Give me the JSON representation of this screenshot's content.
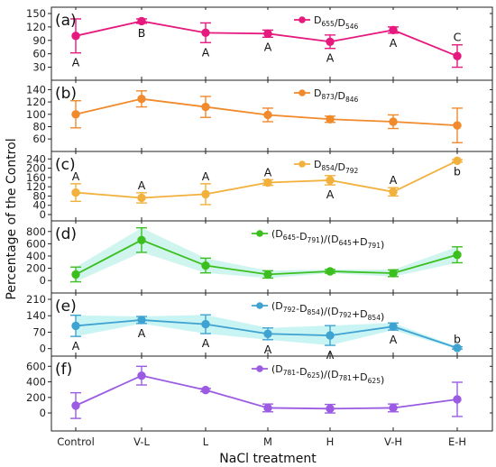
{
  "chart_data": {
    "type": "line",
    "xlabel": "NaCl treatment",
    "ylabel": "Percentage of the Control",
    "categories": [
      "Control",
      "V-L",
      "L",
      "M",
      "H",
      "V-H",
      "E-H"
    ],
    "panels": [
      {
        "label": "(a)",
        "color": "#e6197f",
        "legend": {
          "main": "D",
          "parts": [
            [
              "D",
              "655"
            ],
            [
              "/D",
              "546"
            ]
          ]
        },
        "ylim": [
          15,
          150
        ],
        "yticks": [
          30,
          60,
          90,
          120,
          150
        ],
        "values": [
          100,
          133,
          107,
          105,
          87,
          113,
          55
        ],
        "errors": [
          38,
          5,
          22,
          8,
          15,
          7,
          25
        ],
        "shade": false,
        "sig": [
          {
            "i": 0,
            "text": "A",
            "pos": "below"
          },
          {
            "i": 1,
            "text": "B",
            "pos": "below"
          },
          {
            "i": 2,
            "text": "A",
            "pos": "below"
          },
          {
            "i": 3,
            "text": "A",
            "pos": "below"
          },
          {
            "i": 4,
            "text": "A",
            "pos": "below"
          },
          {
            "i": 5,
            "text": "A",
            "pos": "below"
          },
          {
            "i": 6,
            "text": "C",
            "pos": "above"
          }
        ]
      },
      {
        "label": "(b)",
        "color": "#f08a2c",
        "legend": {
          "parts": [
            [
              "D",
              "873"
            ],
            [
              "/D",
              "846"
            ]
          ]
        },
        "ylim": [
          50,
          145
        ],
        "yticks": [
          60,
          80,
          100,
          120,
          140
        ],
        "values": [
          100,
          125,
          112,
          99,
          92,
          88,
          82
        ],
        "errors": [
          22,
          13,
          17,
          11,
          5,
          11,
          28
        ],
        "shade": false,
        "sig": []
      },
      {
        "label": "(c)",
        "color": "#f2b13c",
        "legend": {
          "parts": [
            [
              "D",
              "854"
            ],
            [
              "/D",
              "792"
            ]
          ]
        },
        "ylim": [
          0,
          245
        ],
        "yticks": [
          0,
          40,
          80,
          120,
          160,
          200,
          240
        ],
        "values": [
          95,
          72,
          88,
          138,
          148,
          98,
          232
        ],
        "errors": [
          38,
          22,
          45,
          12,
          20,
          18,
          5
        ],
        "shade": false,
        "sig": [
          {
            "i": 0,
            "text": "A",
            "pos": "above"
          },
          {
            "i": 1,
            "text": "A",
            "pos": "above"
          },
          {
            "i": 2,
            "text": "A",
            "pos": "above"
          },
          {
            "i": 3,
            "text": "A",
            "pos": "above"
          },
          {
            "i": 4,
            "text": "A",
            "pos": "below"
          },
          {
            "i": 5,
            "text": "A",
            "pos": "above"
          },
          {
            "i": 6,
            "text": "b",
            "pos": "below"
          }
        ]
      },
      {
        "label": "(d)",
        "color": "#3cbf1e",
        "legend": {
          "parts": [
            [
              "(D",
              "645"
            ],
            [
              "-D",
              "791"
            ],
            [
              ")/(D",
              "645"
            ],
            [
              "+D",
              "791"
            ],
            [
              ")",
              ""
            ]
          ]
        },
        "ylim": [
          -100,
          870
        ],
        "yticks": [
          0,
          200,
          400,
          600,
          800
        ],
        "values": [
          100,
          660,
          245,
          100,
          150,
          120,
          420
        ],
        "errors": [
          120,
          200,
          120,
          60,
          30,
          55,
          130
        ],
        "shade": true,
        "sig": []
      },
      {
        "label": "(e)",
        "color": "#3fa3d2",
        "legend": {
          "parts": [
            [
              "(D",
              "792"
            ],
            [
              "-D",
              "854"
            ],
            [
              ")/(D",
              "792"
            ],
            [
              "+D",
              "854"
            ],
            [
              ")",
              ""
            ]
          ]
        },
        "ylim": [
          -5,
          210
        ],
        "yticks": [
          0,
          70,
          140,
          210
        ],
        "values": [
          97,
          122,
          104,
          63,
          56,
          94,
          3
        ],
        "errors": [
          45,
          15,
          40,
          25,
          42,
          15,
          5
        ],
        "shade": true,
        "sig": [
          {
            "i": 0,
            "text": "A",
            "pos": "below"
          },
          {
            "i": 1,
            "text": "A",
            "pos": "below"
          },
          {
            "i": 2,
            "text": "A",
            "pos": "below"
          },
          {
            "i": 3,
            "text": "A",
            "pos": "below"
          },
          {
            "i": 4,
            "text": "A",
            "pos": "below"
          },
          {
            "i": 5,
            "text": "A",
            "pos": "below"
          },
          {
            "i": 6,
            "text": "b",
            "pos": "above"
          }
        ]
      },
      {
        "label": "(f)",
        "color": "#9b5ce3",
        "legend": {
          "parts": [
            [
              "(D",
              "781"
            ],
            [
              "-D",
              "625"
            ],
            [
              ")/(D",
              "781"
            ],
            [
              "+D",
              "625"
            ],
            [
              ")",
              ""
            ]
          ]
        },
        "ylim": [
          -150,
          650
        ],
        "yticks": [
          0,
          200,
          400,
          600
        ],
        "values": [
          95,
          480,
          295,
          65,
          55,
          65,
          175
        ],
        "errors": [
          165,
          120,
          20,
          50,
          55,
          50,
          220
        ],
        "shade": false,
        "sig": []
      }
    ]
  }
}
